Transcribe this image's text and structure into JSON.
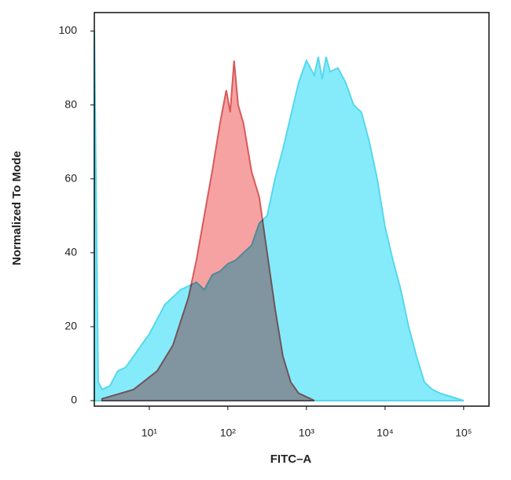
{
  "chart_data": {
    "type": "area",
    "xlabel": "FITC–A",
    "ylabel": "Normalized To Mode",
    "xscale": "log",
    "xlim": [
      2,
      210000
    ],
    "ylim": [
      -1.5,
      105
    ],
    "xticks": [
      {
        "value": 10,
        "label": "10¹"
      },
      {
        "value": 100,
        "label": "10²"
      },
      {
        "value": 1000,
        "label": "10³"
      },
      {
        "value": 10000,
        "label": "10⁴"
      },
      {
        "value": 100000,
        "label": "10⁵"
      }
    ],
    "yticks": [
      0,
      20,
      40,
      60,
      80,
      100
    ],
    "series": [
      {
        "color": "#55d8ec",
        "fill": "#85ebfb",
        "x": [
          2.0,
          2.24,
          2.51,
          3.16,
          3.98,
          5.01,
          6.31,
          7.94,
          10,
          12.6,
          15.8,
          20.0,
          25.1,
          31.6,
          39.8,
          50.1,
          63.1,
          79.4,
          100,
          126,
          158,
          200,
          251,
          316,
          398,
          501,
          631,
          794,
          1000,
          1259,
          1413,
          1585,
          1778,
          1995,
          2512,
          3162,
          3981,
          5012,
          6310,
          7943,
          10000,
          12589,
          15849,
          19953,
          25119,
          31623,
          39811,
          50119,
          70795,
          100000
        ],
        "values": [
          100,
          5,
          3,
          4,
          8,
          9,
          12,
          15,
          18,
          22,
          26,
          28,
          30,
          31,
          32,
          30,
          34,
          35,
          37,
          38,
          40,
          42,
          48,
          50,
          60,
          68,
          77,
          86,
          92,
          88,
          93,
          87,
          93,
          89,
          90,
          86,
          80,
          78,
          70,
          60,
          47,
          38,
          30,
          20,
          12,
          5,
          3,
          2,
          1,
          0
        ]
      },
      {
        "color": "#d85a5a",
        "fill": "#f6a2a2",
        "x": [
          2.51,
          6.31,
          12.6,
          20.0,
          31.6,
          39.8,
          50.1,
          63.1,
          79.4,
          95.5,
          107,
          120,
          135,
          158,
          200,
          251,
          316,
          398,
          501,
          631,
          794,
          1122,
          1259
        ],
        "values": [
          0.5,
          3,
          8,
          15,
          28,
          38,
          50,
          62,
          75,
          84,
          78,
          92,
          80,
          75,
          62,
          55,
          40,
          25,
          12,
          5,
          2,
          0.5,
          0
        ]
      }
    ]
  }
}
